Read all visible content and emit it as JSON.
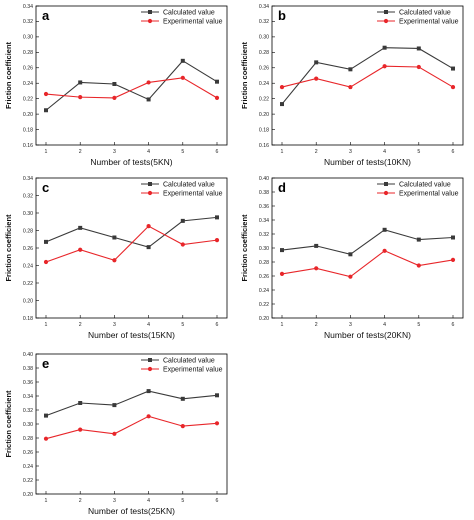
{
  "chart_data": [
    {
      "type": "line",
      "panel_label": "a",
      "x": [
        1,
        2,
        3,
        4,
        5,
        6
      ],
      "xlabel": "Number of tests(5KN)",
      "ylabel": "Friction coefficient",
      "ylim": [
        0.16,
        0.34
      ],
      "yticks": [
        "0.16",
        "0.18",
        "0.20",
        "0.22",
        "0.24",
        "0.26",
        "0.28",
        "0.30",
        "0.32",
        "0.34"
      ],
      "xticks": [
        "1",
        "2",
        "3",
        "4",
        "5",
        "6"
      ],
      "legend": "top-right",
      "series": [
        {
          "name": "Calculated value",
          "color": "#3a3a3a",
          "marker": "square",
          "values": [
            0.205,
            0.241,
            0.239,
            0.219,
            0.269,
            0.242
          ]
        },
        {
          "name": "Experimental value",
          "color": "#e8262a",
          "marker": "circle",
          "values": [
            0.226,
            0.222,
            0.221,
            0.241,
            0.247,
            0.221
          ]
        }
      ]
    },
    {
      "type": "line",
      "panel_label": "b",
      "x": [
        1,
        2,
        3,
        4,
        5,
        6
      ],
      "xlabel": "Number of tests(10KN)",
      "ylabel": "Friction coefficient",
      "ylim": [
        0.16,
        0.34
      ],
      "yticks": [
        "0.16",
        "0.18",
        "0.20",
        "0.22",
        "0.24",
        "0.26",
        "0.28",
        "0.30",
        "0.32",
        "0.34"
      ],
      "xticks": [
        "1",
        "2",
        "3",
        "4",
        "5",
        "6"
      ],
      "legend": "top-right",
      "series": [
        {
          "name": "Calculated value",
          "color": "#3a3a3a",
          "marker": "square",
          "values": [
            0.213,
            0.267,
            0.258,
            0.286,
            0.285,
            0.259
          ]
        },
        {
          "name": "Experimental value",
          "color": "#e8262a",
          "marker": "circle",
          "values": [
            0.235,
            0.246,
            0.235,
            0.262,
            0.261,
            0.235
          ]
        }
      ]
    },
    {
      "type": "line",
      "panel_label": "c",
      "x": [
        1,
        2,
        3,
        4,
        5,
        6
      ],
      "xlabel": "Number of tests(15KN)",
      "ylabel": "Friction coefficient",
      "ylim": [
        0.18,
        0.34
      ],
      "yticks": [
        "0.18",
        "0.20",
        "0.22",
        "0.24",
        "0.26",
        "0.28",
        "0.30",
        "0.32",
        "0.34"
      ],
      "xticks": [
        "1",
        "2",
        "3",
        "4",
        "5",
        "6"
      ],
      "legend": "top-right",
      "series": [
        {
          "name": "Calculated value",
          "color": "#3a3a3a",
          "marker": "square",
          "values": [
            0.267,
            0.283,
            0.272,
            0.261,
            0.291,
            0.295
          ]
        },
        {
          "name": "Experimental value",
          "color": "#e8262a",
          "marker": "circle",
          "values": [
            0.244,
            0.258,
            0.246,
            0.285,
            0.264,
            0.269
          ]
        }
      ]
    },
    {
      "type": "line",
      "panel_label": "d",
      "x": [
        1,
        2,
        3,
        4,
        5,
        6
      ],
      "xlabel": "Number of tests(20KN)",
      "ylabel": "Friction coefficient",
      "ylim": [
        0.2,
        0.4
      ],
      "yticks": [
        "0.20",
        "0.22",
        "0.24",
        "0.26",
        "0.28",
        "0.30",
        "0.32",
        "0.34",
        "0.36",
        "0.38",
        "0.40"
      ],
      "xticks": [
        "1",
        "2",
        "3",
        "4",
        "5",
        "6"
      ],
      "legend": "top-right",
      "series": [
        {
          "name": "Calculated value",
          "color": "#3a3a3a",
          "marker": "square",
          "values": [
            0.297,
            0.303,
            0.291,
            0.326,
            0.312,
            0.315
          ]
        },
        {
          "name": "Experimental value",
          "color": "#e8262a",
          "marker": "circle",
          "values": [
            0.263,
            0.271,
            0.259,
            0.296,
            0.275,
            0.283
          ]
        }
      ]
    },
    {
      "type": "line",
      "panel_label": "e",
      "x": [
        1,
        2,
        3,
        4,
        5,
        6
      ],
      "xlabel": "Number of tests(25KN)",
      "ylabel": "Friction coefficient",
      "ylim": [
        0.2,
        0.4
      ],
      "yticks": [
        "0.20",
        "0.22",
        "0.24",
        "0.26",
        "0.28",
        "0.30",
        "0.32",
        "0.34",
        "0.36",
        "0.38",
        "0.40"
      ],
      "xticks": [
        "1",
        "2",
        "3",
        "4",
        "5",
        "6"
      ],
      "legend": "top-right",
      "series": [
        {
          "name": "Calculated value",
          "color": "#3a3a3a",
          "marker": "square",
          "values": [
            0.312,
            0.33,
            0.327,
            0.347,
            0.336,
            0.341
          ]
        },
        {
          "name": "Experimental value",
          "color": "#e8262a",
          "marker": "circle",
          "values": [
            0.279,
            0.292,
            0.286,
            0.311,
            0.297,
            0.301
          ]
        }
      ]
    }
  ]
}
